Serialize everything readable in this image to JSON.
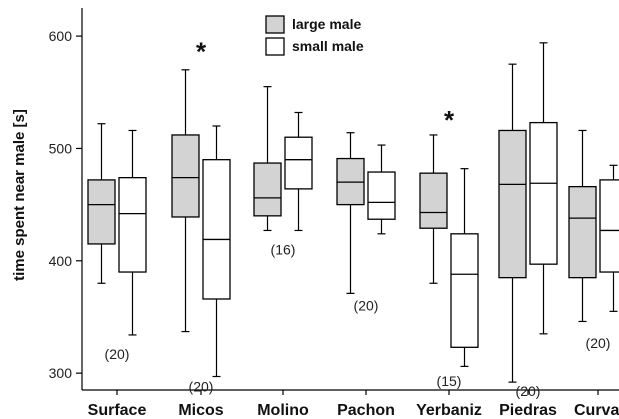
{
  "chart_data": {
    "type": "box",
    "ylabel": "time spent near male [s]",
    "ylim": [
      285,
      625
    ],
    "yticks": [
      300,
      400,
      500,
      600
    ],
    "categories": [
      "Surface",
      "Micos",
      "Molino",
      "Pachon",
      "Yerbaniz",
      "Piedras",
      "Curva"
    ],
    "legend": {
      "placement": "top-center",
      "entries": [
        {
          "name": "large male",
          "color": "#d3d3d3"
        },
        {
          "name": "small male",
          "color": "#ffffff"
        }
      ]
    },
    "series": [
      {
        "name": "large male",
        "color": "#d3d3d3",
        "boxes": [
          {
            "min": 380,
            "q1": 415,
            "median": 450,
            "q3": 472,
            "max": 522
          },
          {
            "min": 337,
            "q1": 439,
            "median": 474,
            "q3": 512,
            "max": 570
          },
          {
            "min": 427,
            "q1": 440,
            "median": 456,
            "q3": 487,
            "max": 555
          },
          {
            "min": 371,
            "q1": 450,
            "median": 470,
            "q3": 491,
            "max": 514
          },
          {
            "min": 380,
            "q1": 429,
            "median": 443,
            "q3": 478,
            "max": 512
          },
          {
            "min": 292,
            "q1": 385,
            "median": 468,
            "q3": 516,
            "max": 575
          },
          {
            "min": 346,
            "q1": 385,
            "median": 438,
            "q3": 466,
            "max": 516
          }
        ]
      },
      {
        "name": "small male",
        "color": "#ffffff",
        "boxes": [
          {
            "min": 334,
            "q1": 390,
            "median": 442,
            "q3": 474,
            "max": 516
          },
          {
            "min": 297,
            "q1": 366,
            "median": 419,
            "q3": 490,
            "max": 520
          },
          {
            "min": 427,
            "q1": 464,
            "median": 490,
            "q3": 510,
            "max": 532
          },
          {
            "min": 424,
            "q1": 437,
            "median": 452,
            "q3": 479,
            "max": 503
          },
          {
            "min": 306,
            "q1": 323,
            "median": 388,
            "q3": 424,
            "max": 482
          },
          {
            "min": 335,
            "q1": 397,
            "median": 469,
            "q3": 523,
            "max": 594
          },
          {
            "min": 355,
            "q1": 390,
            "median": 427,
            "q3": 472,
            "max": 485
          }
        ]
      }
    ],
    "annotations": {
      "sample_sizes": [
        {
          "category": "Surface",
          "text": "(20)",
          "y": 317
        },
        {
          "category": "Micos",
          "text": "(20)",
          "y": 288
        },
        {
          "category": "Molino",
          "text": "(16)",
          "y": 410
        },
        {
          "category": "Pachon",
          "text": "(20)",
          "y": 360
        },
        {
          "category": "Yerbaniz",
          "text": "(15)",
          "y": 293
        },
        {
          "category": "Piedras",
          "text": "(20)",
          "y": 284
        },
        {
          "category": "Curva",
          "text": "(20)",
          "y": 327
        }
      ],
      "significance": [
        {
          "category": "Micos",
          "text": "*",
          "y": 589
        },
        {
          "category": "Yerbaniz",
          "text": "*",
          "y": 528
        }
      ]
    }
  }
}
